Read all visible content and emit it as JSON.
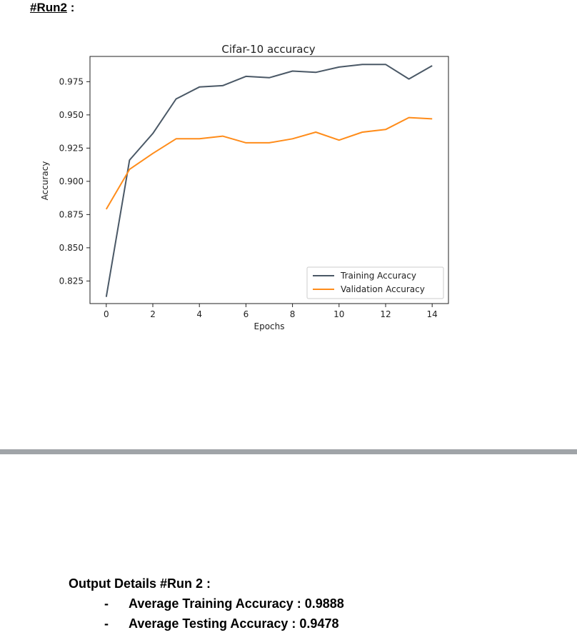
{
  "heading": {
    "run_label": "#Run2",
    "suffix": " :"
  },
  "chart_data": {
    "type": "line",
    "title": "Cifar-10 accuracy",
    "xlabel": "Epochs",
    "ylabel": "Accuracy",
    "x": [
      0,
      1,
      2,
      3,
      4,
      5,
      6,
      7,
      8,
      9,
      10,
      11,
      12,
      13,
      14
    ],
    "series": [
      {
        "name": "Training Accuracy",
        "color": "#4a5866",
        "values": [
          0.813,
          0.916,
          0.936,
          0.962,
          0.971,
          0.972,
          0.979,
          0.978,
          0.983,
          0.982,
          0.986,
          0.988,
          0.988,
          0.977,
          0.987
        ]
      },
      {
        "name": "Validation Accuracy",
        "color": "#ff8c1a",
        "values": [
          0.879,
          0.909,
          0.921,
          0.932,
          0.932,
          0.934,
          0.929,
          0.929,
          0.932,
          0.937,
          0.931,
          0.937,
          0.939,
          0.948,
          0.947
        ]
      }
    ],
    "xlim": [
      -0.7,
      14.7
    ],
    "ylim": [
      0.808,
      0.994
    ],
    "xticks": [
      0,
      2,
      4,
      6,
      8,
      10,
      12,
      14
    ],
    "xtick_labels": [
      "0",
      "2",
      "4",
      "6",
      "8",
      "10",
      "12",
      "14"
    ],
    "yticks": [
      0.825,
      0.85,
      0.875,
      0.9,
      0.925,
      0.95,
      0.975
    ],
    "ytick_labels": [
      "0.825",
      "0.850",
      "0.875",
      "0.900",
      "0.925",
      "0.950",
      "0.975"
    ],
    "grid": false,
    "legend": "lower-right"
  },
  "details": {
    "title": "Output Details  #Run 2 :",
    "items": [
      {
        "dash": "-",
        "text": "Average Training Accuracy : 0.9888"
      },
      {
        "dash": "-",
        "text": "Average Testing Accuracy : 0.9478"
      }
    ]
  }
}
